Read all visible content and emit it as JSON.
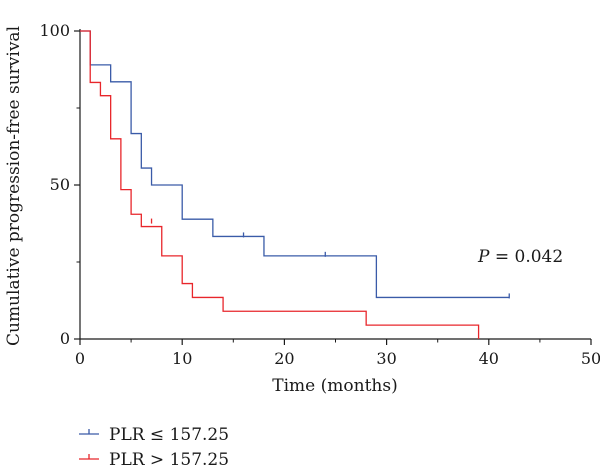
{
  "chart_data": {
    "type": "line",
    "step": true,
    "xlabel": "Time (months)",
    "ylabel": "Cumulative progression-free survival",
    "xlim": [
      0,
      50
    ],
    "ylim": [
      0,
      100
    ],
    "xticks": [
      0,
      10,
      20,
      30,
      40,
      50
    ],
    "yticks": [
      0,
      50,
      100
    ],
    "grid": false,
    "legend_position": "bottom-left",
    "annotation": {
      "italic": "P",
      "rest": " = 0.042"
    },
    "series": [
      {
        "name": "PLR ≤ 157.25",
        "color": "#3a5ba8",
        "points": [
          [
            0,
            100
          ],
          [
            1,
            89
          ],
          [
            3,
            83.5
          ],
          [
            5,
            66.7
          ],
          [
            6,
            55.5
          ],
          [
            7,
            50
          ],
          [
            10,
            38.9
          ],
          [
            13,
            33.3
          ],
          [
            18,
            27
          ],
          [
            29,
            13.5
          ],
          [
            42,
            13.5
          ]
        ],
        "censored": [
          [
            16,
            33.3
          ],
          [
            24,
            27
          ],
          [
            42,
            13.5
          ]
        ]
      },
      {
        "name": "PLR > 157.25",
        "color": "#e8262b",
        "points": [
          [
            0,
            100
          ],
          [
            1,
            83.3
          ],
          [
            2,
            79
          ],
          [
            3,
            65
          ],
          [
            4,
            48.5
          ],
          [
            5,
            40.5
          ],
          [
            6,
            36.5
          ],
          [
            8,
            27
          ],
          [
            10,
            18
          ],
          [
            11,
            13.5
          ],
          [
            14,
            9
          ],
          [
            28,
            4.5
          ],
          [
            39,
            0
          ]
        ],
        "censored": [
          [
            7,
            37.8
          ]
        ]
      }
    ]
  }
}
